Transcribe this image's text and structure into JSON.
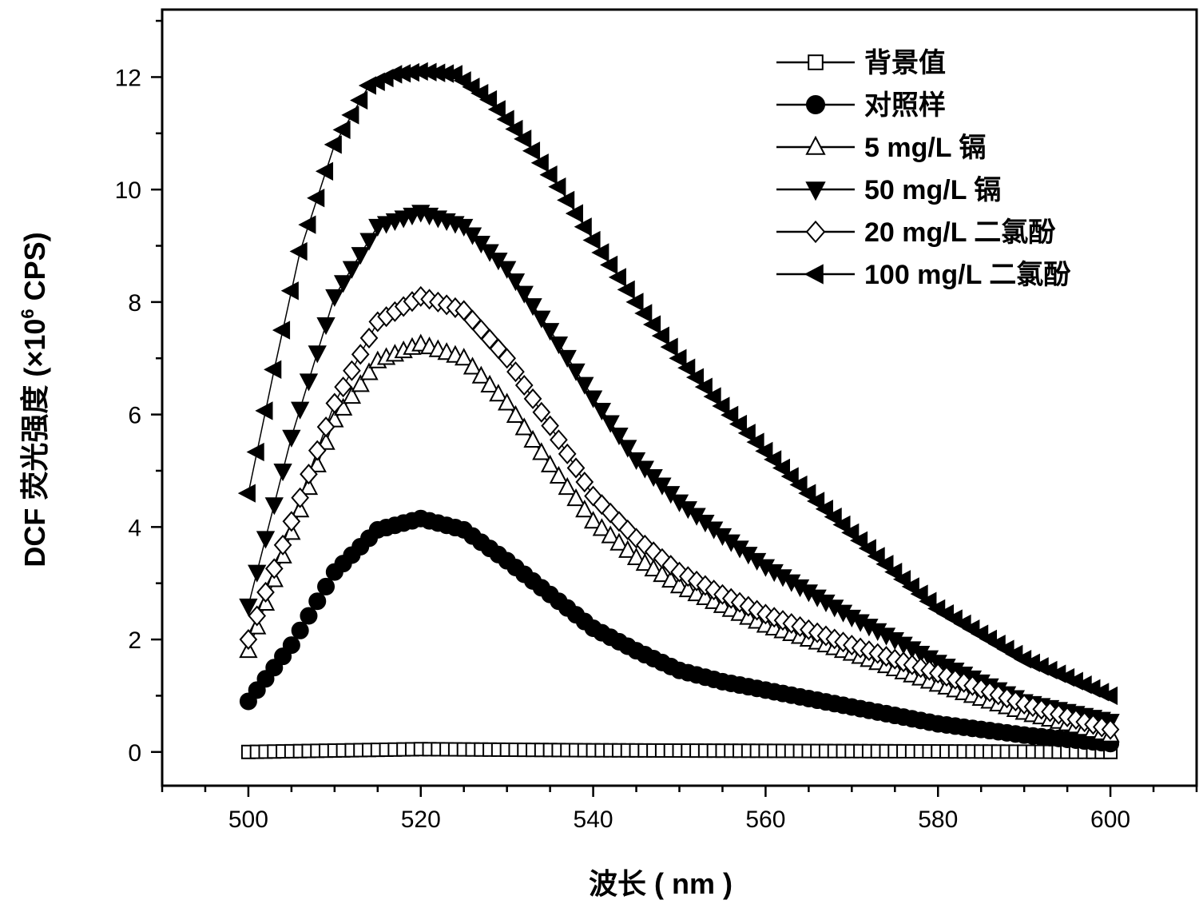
{
  "chart_data": {
    "type": "scatter",
    "xlabel": "波长 ( nm )",
    "ylabel_main": "DCF 荧光强度 (×10",
    "ylabel_sup": "6",
    "ylabel_tail": " CPS)",
    "xlim": [
      490,
      610
    ],
    "ylim": [
      -0.6,
      13.2
    ],
    "x_ticks": [
      500,
      520,
      540,
      560,
      580,
      600
    ],
    "y_ticks": [
      0,
      2,
      4,
      6,
      8,
      10,
      12
    ],
    "x_start": 500,
    "x_end": 600,
    "x_step": 1,
    "legend_position": "top-right",
    "series": [
      {
        "name": "背景值",
        "marker": "square-open",
        "x": [
          500,
          520,
          540,
          560,
          580,
          600
        ],
        "y": [
          0.0,
          0.05,
          0.03,
          0.02,
          0.01,
          0.0
        ]
      },
      {
        "name": "对照样",
        "marker": "circle-filled",
        "x": [
          500,
          505,
          510,
          515,
          520,
          525,
          530,
          535,
          540,
          545,
          550,
          555,
          560,
          570,
          580,
          590,
          600
        ],
        "y": [
          0.9,
          1.9,
          3.2,
          3.95,
          4.15,
          3.95,
          3.4,
          2.8,
          2.2,
          1.8,
          1.45,
          1.25,
          1.1,
          0.8,
          0.5,
          0.3,
          0.15
        ]
      },
      {
        "name": "5 mg/L 镉",
        "marker": "triangle-up-open",
        "x": [
          500,
          505,
          510,
          515,
          520,
          525,
          530,
          535,
          540,
          545,
          550,
          555,
          560,
          570,
          580,
          590,
          600
        ],
        "y": [
          1.8,
          3.9,
          5.9,
          6.95,
          7.25,
          7.0,
          6.2,
          5.1,
          4.1,
          3.45,
          2.95,
          2.6,
          2.25,
          1.75,
          1.2,
          0.7,
          0.3
        ]
      },
      {
        "name": "50 mg/L 镉",
        "marker": "triangle-down-filled",
        "x": [
          500,
          505,
          510,
          515,
          520,
          525,
          530,
          535,
          540,
          545,
          550,
          555,
          560,
          570,
          580,
          590,
          600
        ],
        "y": [
          2.6,
          5.6,
          8.1,
          9.35,
          9.6,
          9.35,
          8.6,
          7.5,
          6.3,
          5.2,
          4.45,
          3.85,
          3.3,
          2.4,
          1.6,
          0.9,
          0.55
        ]
      },
      {
        "name": "20 mg/L 二氯酚",
        "marker": "diamond-open",
        "x": [
          500,
          505,
          510,
          515,
          520,
          525,
          530,
          535,
          540,
          545,
          550,
          555,
          560,
          570,
          580,
          590,
          600
        ],
        "y": [
          2.0,
          4.1,
          6.2,
          7.65,
          8.1,
          7.85,
          7.0,
          5.8,
          4.55,
          3.8,
          3.2,
          2.8,
          2.45,
          1.9,
          1.4,
          0.85,
          0.4
        ]
      },
      {
        "name": "100 mg/L  二氯酚",
        "marker": "triangle-left-filled",
        "x": [
          500,
          503,
          506,
          510,
          514,
          517,
          520,
          524,
          528,
          532,
          536,
          540,
          545,
          550,
          555,
          560,
          565,
          570,
          575,
          580,
          590,
          600
        ],
        "y": [
          4.6,
          6.8,
          8.9,
          10.8,
          11.85,
          12.05,
          12.1,
          12.05,
          11.6,
          10.9,
          10.05,
          9.1,
          8.0,
          7.0,
          6.15,
          5.35,
          4.6,
          3.9,
          3.2,
          2.55,
          1.65,
          1.0
        ]
      }
    ]
  }
}
